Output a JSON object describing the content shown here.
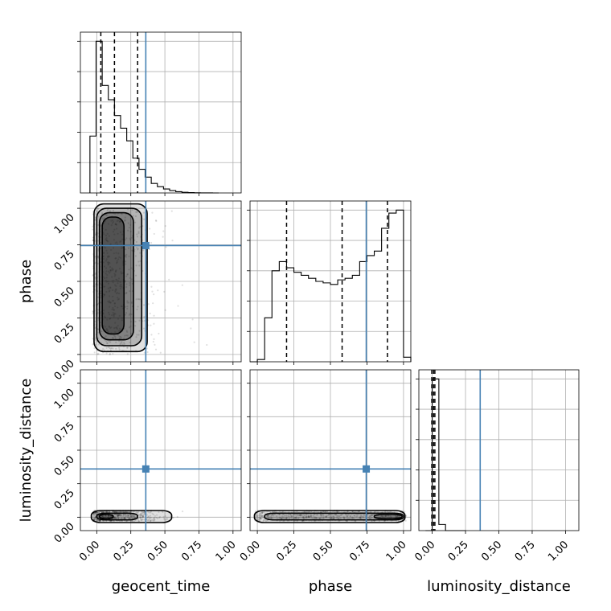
{
  "chart_data": {
    "type": "corner",
    "parameters": [
      "geocent_time",
      "phase",
      "luminosity_distance"
    ],
    "x_tick_labels": [
      "0.00",
      "0.25",
      "0.50",
      "0.75",
      "1.00"
    ],
    "y_tick_labels": [
      "0.00",
      "0.25",
      "0.50",
      "0.75",
      "1.00"
    ],
    "axis_ranges": {
      "geocent_time": [
        -0.12,
        1.06
      ],
      "phase": [
        -0.05,
        1.05
      ],
      "luminosity_distance": [
        -0.1,
        1.1
      ]
    },
    "truths": {
      "geocent_time": 0.36,
      "phase": 0.745,
      "luminosity_distance": 0.36
    },
    "quantiles": {
      "geocent_time": [
        0.03,
        0.13,
        0.3
      ],
      "phase": [
        0.2,
        0.58,
        0.89
      ],
      "luminosity_distance": [
        -0.003,
        0.01,
        0.02
      ]
    },
    "grid": true,
    "colors": {
      "truth": "#4682b4",
      "hist": "#000000",
      "grid": "#b0b0b0"
    },
    "histograms": {
      "geocent_time": {
        "bin_edges": [
          -0.05,
          -0.005,
          0.04,
          0.085,
          0.13,
          0.175,
          0.22,
          0.265,
          0.31,
          0.355,
          0.4,
          0.445,
          0.49,
          0.535,
          0.58,
          0.625,
          0.67,
          0.715,
          0.76,
          0.805,
          0.85,
          0.895
        ],
        "counts": [
          36,
          96,
          68,
          59,
          49,
          41,
          33,
          22,
          15,
          10,
          6,
          4,
          2.5,
          1.5,
          0.8,
          0.4,
          0.2,
          0.1,
          0.05,
          0.02,
          0
        ]
      },
      "phase": {
        "bin_edges": [
          -0.05,
          0.0,
          0.05,
          0.1,
          0.15,
          0.2,
          0.25,
          0.3,
          0.35,
          0.4,
          0.45,
          0.5,
          0.55,
          0.6,
          0.65,
          0.7,
          0.75,
          0.8,
          0.85,
          0.9,
          0.95,
          1.0,
          1.05
        ],
        "counts": [
          0,
          1.5,
          29,
          60,
          66,
          62,
          59,
          57,
          55,
          53,
          52,
          51,
          54,
          55,
          57,
          66,
          70,
          73,
          88,
          98,
          100,
          3
        ]
      },
      "luminosity_distance": {
        "bin_edges": [
          -0.05,
          0.0,
          0.05,
          0.1,
          0.15,
          0.2,
          0.25
        ],
        "counts": [
          0,
          99,
          4,
          0,
          0,
          0
        ]
      }
    },
    "density_2d": [
      {
        "x": "geocent_time",
        "y": "phase",
        "points_x_range": [
          -0.05,
          0.75
        ],
        "points_y_range": [
          0.0,
          1.0
        ],
        "contours": [
          {
            "xmin": -0.02,
            "xmax": 0.37,
            "ymin": 0.02,
            "ymax": 1.03
          },
          {
            "xmin": 0.0,
            "xmax": 0.33,
            "ymin": 0.06,
            "ymax": 1.0
          },
          {
            "xmin": 0.02,
            "xmax": 0.27,
            "ymin": 0.1,
            "ymax": 0.97
          },
          {
            "xmin": 0.04,
            "xmax": 0.2,
            "ymin": 0.14,
            "ymax": 0.94
          }
        ]
      },
      {
        "x": "geocent_time",
        "y": "luminosity_distance",
        "points_x_range": [
          -0.05,
          0.75
        ],
        "points_y_range": [
          -0.03,
          0.05
        ],
        "contours": [
          {
            "xmin": -0.04,
            "xmax": 0.55,
            "ymin": -0.04,
            "ymax": 0.05
          },
          {
            "xmin": 0.0,
            "xmax": 0.3,
            "ymin": -0.02,
            "ymax": 0.03
          },
          {
            "xmin": 0.02,
            "xmax": 0.12,
            "ymin": -0.01,
            "ymax": 0.02
          }
        ]
      },
      {
        "x": "phase",
        "y": "luminosity_distance",
        "points_x_range": [
          -0.02,
          1.02
        ],
        "points_y_range": [
          -0.03,
          0.05
        ],
        "contours": [
          {
            "xmin": -0.02,
            "xmax": 1.01,
            "ymin": -0.04,
            "ymax": 0.05
          },
          {
            "xmin": 0.05,
            "xmax": 1.0,
            "ymin": -0.02,
            "ymax": 0.03
          },
          {
            "xmin": 0.8,
            "xmax": 0.99,
            "ymin": -0.01,
            "ymax": 0.02
          }
        ]
      }
    ]
  }
}
